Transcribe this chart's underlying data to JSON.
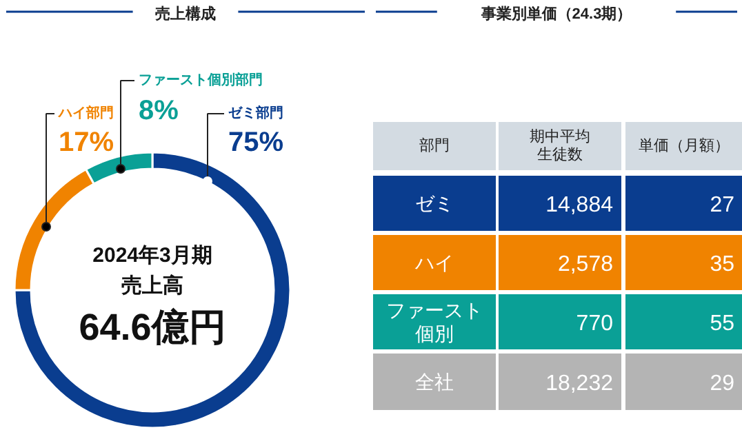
{
  "chart_data": [
    {
      "type": "donut",
      "title": "売上構成",
      "categories": [
        "ゼミ部門",
        "ハイ部門",
        "ファースト個別部門"
      ],
      "values": [
        75,
        17,
        8
      ],
      "colors": [
        "#0a3d8f",
        "#f08300",
        "#0aa096"
      ],
      "value_labels": [
        "75%",
        "17%",
        "8%"
      ],
      "annotations": [
        "2024年3月期",
        "売上高",
        "64.6億円"
      ]
    },
    {
      "type": "other",
      "title": "事業別単価（24.3期）",
      "legend_title": "部門",
      "categories": [
        "期中平均生徒数",
        "単価（月額）"
      ],
      "series": [
        {
          "name": "ゼミ",
          "color": "#0a3d8f",
          "values": [
            14884,
            27
          ],
          "value_labels": [
            "14,884",
            "27"
          ]
        },
        {
          "name": "ハイ",
          "color": "#f08300",
          "values": [
            2578,
            35
          ],
          "value_labels": [
            "2,578",
            "35"
          ]
        },
        {
          "name": "ファースト個別",
          "color": "#0aa096",
          "values": [
            770,
            55
          ],
          "value_labels": [
            "770",
            "55"
          ]
        },
        {
          "name": "全社",
          "color": "#b4b4b4",
          "values": [
            18232,
            29
          ],
          "value_labels": [
            "18,232",
            "29"
          ]
        }
      ]
    }
  ]
}
